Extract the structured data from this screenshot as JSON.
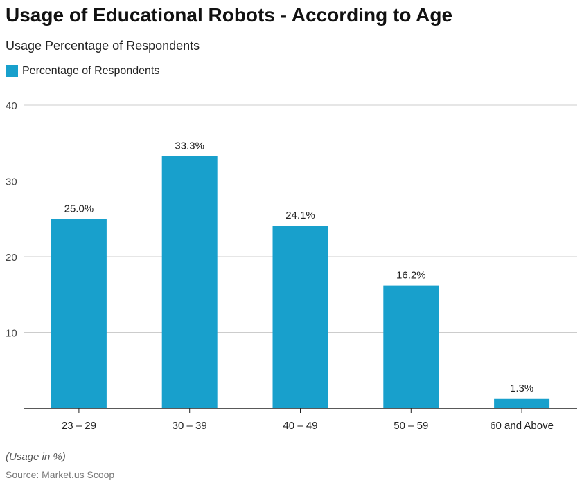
{
  "title": "Usage of Educational Robots - According to Age",
  "subtitle": "Usage Percentage of Respondents",
  "note": "(Usage in %)",
  "source": "Source: Market.us Scoop",
  "chart_data": {
    "type": "bar",
    "categories": [
      "23 – 29",
      "30 – 39",
      "40 – 49",
      "50 – 59",
      "60 and Above"
    ],
    "series": [
      {
        "name": "Percentage of Respondents",
        "values": [
          25.0,
          33.3,
          24.1,
          16.2,
          1.3
        ],
        "color": "#18a0cc"
      }
    ],
    "data_labels": [
      "25.0%",
      "33.3%",
      "24.1%",
      "16.2%",
      "1.3%"
    ],
    "ylim": [
      0,
      40
    ],
    "yticks": [
      10,
      20,
      30,
      40
    ],
    "grid": true,
    "legend": "top-left"
  }
}
